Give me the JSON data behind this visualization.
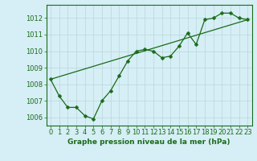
{
  "title": "Graphe pression niveau de la mer (hPa)",
  "background_color": "#d6eef5",
  "line_color": "#1a6b1a",
  "grid_color": "#b8d8d8",
  "xlim": [
    -0.5,
    23.5
  ],
  "ylim": [
    1005.5,
    1012.8
  ],
  "xticks": [
    0,
    1,
    2,
    3,
    4,
    5,
    6,
    7,
    8,
    9,
    10,
    11,
    12,
    13,
    14,
    15,
    16,
    17,
    18,
    19,
    20,
    21,
    22,
    23
  ],
  "yticks": [
    1006,
    1007,
    1008,
    1009,
    1010,
    1011,
    1012
  ],
  "series1_x": [
    0,
    1,
    2,
    3,
    4,
    5,
    6,
    7,
    8,
    9,
    10,
    11,
    12,
    13,
    14,
    15,
    16,
    17,
    18,
    19,
    20,
    21,
    22,
    23
  ],
  "series1_y": [
    1008.3,
    1007.3,
    1006.6,
    1006.6,
    1006.1,
    1005.9,
    1007.0,
    1007.6,
    1008.5,
    1009.4,
    1010.0,
    1010.1,
    1010.0,
    1009.6,
    1009.7,
    1010.3,
    1011.1,
    1010.4,
    1011.9,
    1012.0,
    1012.3,
    1012.3,
    1012.0,
    1011.9
  ],
  "series2_x": [
    0,
    23
  ],
  "series2_y": [
    1008.3,
    1011.9
  ],
  "ylabel_fontsize": 6,
  "xlabel_fontsize": 6,
  "title_fontsize": 6.5,
  "linewidth": 0.9,
  "markersize": 2.5
}
